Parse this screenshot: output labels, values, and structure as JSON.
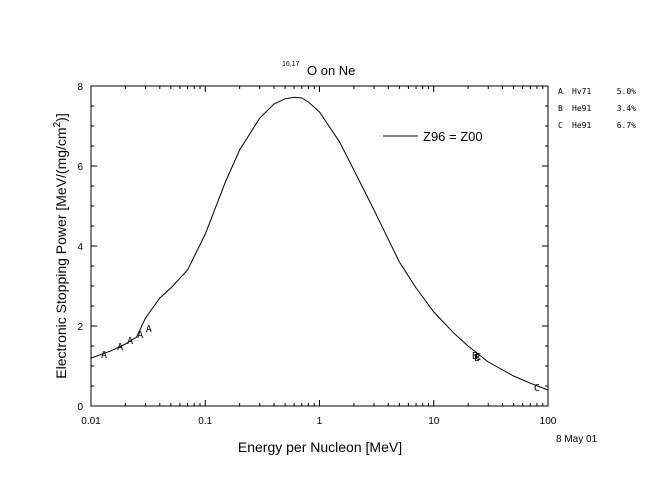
{
  "chart_data": {
    "type": "line",
    "title_sup": "16,17",
    "title_main": "O on Ne",
    "xlabel": "Energy per Nucleon [MeV]",
    "ylabel_main": "Electronic Stopping Power [MeV/(mg/cm",
    "ylabel_sup": "2",
    "ylabel_end": ")]",
    "xscale": "log",
    "xlim": [
      0.01,
      100
    ],
    "ylim": [
      0,
      8
    ],
    "x_ticks": [
      {
        "value": 0.01,
        "label": "0.01"
      },
      {
        "value": 0.1,
        "label": "0.1"
      },
      {
        "value": 1,
        "label": "1"
      },
      {
        "value": 10,
        "label": "10"
      },
      {
        "value": 100,
        "label": "100"
      }
    ],
    "y_ticks": [
      {
        "value": 0,
        "label": "0"
      },
      {
        "value": 2,
        "label": "2"
      },
      {
        "value": 4,
        "label": "4"
      },
      {
        "value": 6,
        "label": "6"
      },
      {
        "value": 8,
        "label": "8"
      }
    ],
    "series": [
      {
        "name": "Z96 = Z00",
        "x": [
          0.01,
          0.015,
          0.02,
          0.025,
          0.03,
          0.04,
          0.05,
          0.07,
          0.1,
          0.15,
          0.2,
          0.3,
          0.4,
          0.5,
          0.6,
          0.7,
          0.8,
          1.0,
          1.5,
          2,
          3,
          5,
          7,
          10,
          15,
          20,
          30,
          50,
          70,
          100
        ],
        "y": [
          1.2,
          1.38,
          1.55,
          1.72,
          2.2,
          2.7,
          2.95,
          3.4,
          4.3,
          5.6,
          6.4,
          7.2,
          7.55,
          7.68,
          7.72,
          7.7,
          7.6,
          7.35,
          6.6,
          5.9,
          4.9,
          3.6,
          2.95,
          2.35,
          1.82,
          1.5,
          1.1,
          0.75,
          0.57,
          0.4
        ]
      }
    ],
    "points": [
      {
        "label": "A",
        "x": 0.013,
        "y": 1.3
      },
      {
        "label": "A",
        "x": 0.018,
        "y": 1.5
      },
      {
        "label": "A",
        "x": 0.022,
        "y": 1.65
      },
      {
        "label": "A",
        "x": 0.027,
        "y": 1.8
      },
      {
        "label": "A",
        "x": 0.032,
        "y": 1.95
      },
      {
        "label": "B",
        "x": 23,
        "y": 1.28
      },
      {
        "label": "B",
        "x": 24,
        "y": 1.22
      },
      {
        "label": "C",
        "x": 24.5,
        "y": 1.25
      },
      {
        "label": "C",
        "x": 80,
        "y": 0.48
      }
    ],
    "data_sources": [
      {
        "letter": "A",
        "ref": "Hv71",
        "error": "5.0%"
      },
      {
        "letter": "B",
        "ref": "He91",
        "error": "3.4%"
      },
      {
        "letter": "C",
        "ref": "He91",
        "error": "6.7%"
      }
    ],
    "date": "8 May 01"
  }
}
